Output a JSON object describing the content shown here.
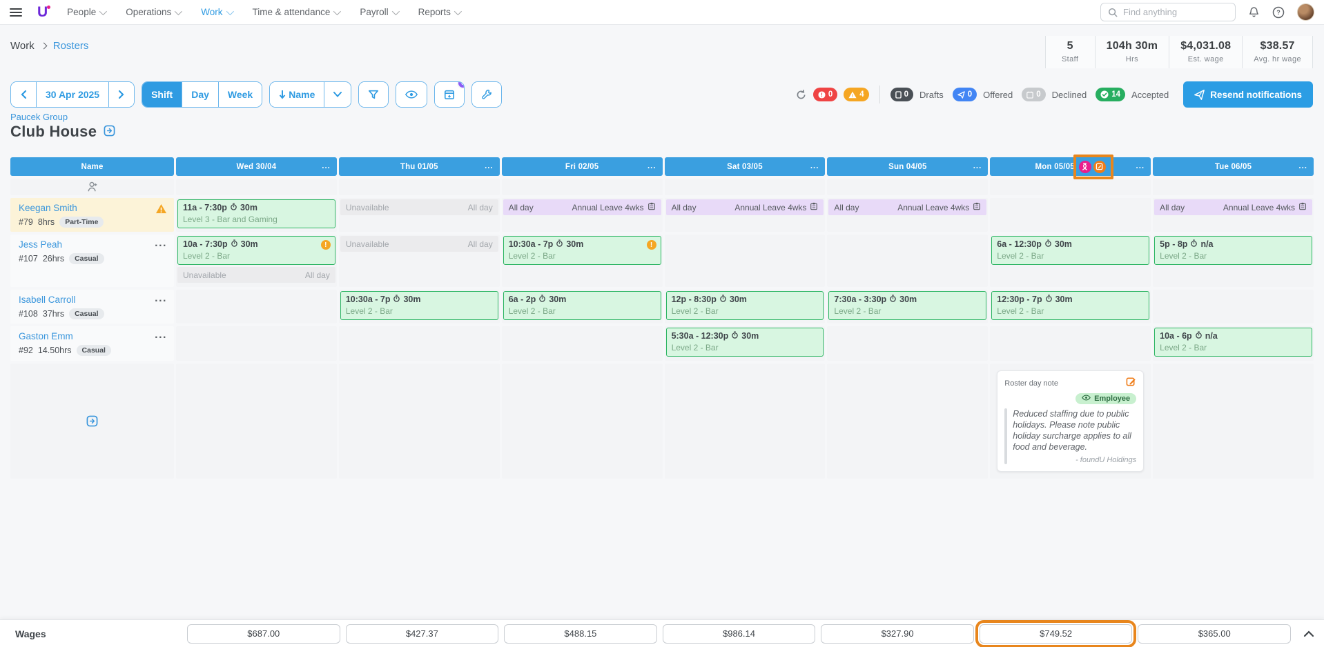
{
  "colors": {
    "accent": "#2f9be2",
    "header_blue": "#3a9fe0",
    "annotation_orange": "#e8861d",
    "shift_green_border": "#2db563",
    "shift_green_bg": "#d8f6e1",
    "leave_purple": "#e8daf8",
    "unavailable_gray": "#ebebed",
    "warning_orange": "#f5a623",
    "badge_purple": "#8b5cf6"
  },
  "nav": {
    "menus": [
      {
        "label": "People",
        "active": false
      },
      {
        "label": "Operations",
        "active": false
      },
      {
        "label": "Work",
        "active": true
      },
      {
        "label": "Time & attendance",
        "active": false
      },
      {
        "label": "Payroll",
        "active": false
      },
      {
        "label": "Reports",
        "active": false
      }
    ],
    "search_placeholder": "Find anything"
  },
  "breadcrumb": {
    "section": "Work",
    "current": "Rosters"
  },
  "stats": [
    {
      "value": "5",
      "label": "Staff"
    },
    {
      "value": "104h 30m",
      "label": "Hrs"
    },
    {
      "value": "$4,031.08",
      "label": "Est. wage"
    },
    {
      "value": "$38.57",
      "label": "Avg. hr wage"
    }
  ],
  "toolbar": {
    "date": "30 Apr 2025",
    "views": [
      "Shift",
      "Day",
      "Week"
    ],
    "active_view": "Shift",
    "sort_label": "Name",
    "schedule_badge": "3",
    "alert_error_count": "0",
    "alert_warning_count": "4",
    "statuses": [
      {
        "count": "0",
        "label": "Drafts",
        "color": "#4a5056",
        "icon": "page-icon"
      },
      {
        "count": "0",
        "label": "Offered",
        "color": "#4285f4",
        "icon": "paper-plane-icon"
      },
      {
        "count": "0",
        "label": "Declined",
        "color": "#c7cacd",
        "icon": "calendar-x-icon"
      },
      {
        "count": "14",
        "label": "Accepted",
        "color": "#27ae60",
        "icon": "check-circle-icon"
      }
    ],
    "resend_label": "Resend notifications"
  },
  "page": {
    "group": "Paucek Group",
    "title": "Club House"
  },
  "roster": {
    "columns": [
      "Name",
      "Wed 30/04",
      "Thu 01/05",
      "Fri 02/05",
      "Sat 03/05",
      "Sun 04/05",
      "Mon 05/05",
      "Tue 06/05"
    ],
    "highlight_day_index": 5,
    "cell_labels": {
      "unavailable_left": "Unavailable",
      "unavailable_right": "All day",
      "leave_left": "All day",
      "leave_right": "Annual Leave 4wks"
    },
    "employees": [
      {
        "name": "Keegan Smith",
        "id": "#79",
        "hours": "8hrs",
        "type": "Part-Time",
        "warning": true,
        "highlight": true,
        "min_height": 48,
        "cells": [
          [
            {
              "t": "shift",
              "time": "11a - 7:30p",
              "brk": "30m",
              "level": "Level 3 - Bar and Gaming",
              "warn": false
            }
          ],
          [
            {
              "t": "unavail"
            }
          ],
          [
            {
              "t": "leave"
            }
          ],
          [
            {
              "t": "leave"
            }
          ],
          [
            {
              "t": "leave"
            }
          ],
          [],
          [
            {
              "t": "leave"
            }
          ]
        ]
      },
      {
        "name": "Jess Peah",
        "id": "#107",
        "hours": "26hrs",
        "type": "Casual",
        "warning": false,
        "highlight": false,
        "min_height": 76,
        "cells": [
          [
            {
              "t": "shift",
              "time": "10a - 7:30p",
              "brk": "30m",
              "level": "Level 2 - Bar",
              "warn": true
            },
            {
              "t": "unavail"
            }
          ],
          [
            {
              "t": "unavail"
            }
          ],
          [
            {
              "t": "shift",
              "time": "10:30a - 7p",
              "brk": "30m",
              "level": "Level 2 - Bar",
              "warn": true
            }
          ],
          [],
          [],
          [
            {
              "t": "shift",
              "time": "6a - 12:30p",
              "brk": "30m",
              "level": "Level 2 - Bar",
              "warn": false
            }
          ],
          [
            {
              "t": "shift",
              "time": "5p - 8p",
              "brk": "n/a",
              "level": "Level 2 - Bar",
              "warn": false
            }
          ]
        ]
      },
      {
        "name": "Isabell Carroll",
        "id": "#108",
        "hours": "37hrs",
        "type": "Casual",
        "warning": false,
        "highlight": false,
        "min_height": 46,
        "cells": [
          [],
          [
            {
              "t": "shift",
              "time": "10:30a - 7p",
              "brk": "30m",
              "level": "Level 2 - Bar",
              "warn": false
            }
          ],
          [
            {
              "t": "shift",
              "time": "6a - 2p",
              "brk": "30m",
              "level": "Level 2 - Bar",
              "warn": false
            }
          ],
          [
            {
              "t": "shift",
              "time": "12p - 8:30p",
              "brk": "30m",
              "level": "Level 2 - Bar",
              "warn": false
            }
          ],
          [
            {
              "t": "shift",
              "time": "7:30a - 3:30p",
              "brk": "30m",
              "level": "Level 2 - Bar",
              "warn": false
            }
          ],
          [
            {
              "t": "shift",
              "time": "12:30p - 7p",
              "brk": "30m",
              "level": "Level 2 - Bar",
              "warn": false
            }
          ],
          []
        ]
      },
      {
        "name": "Gaston Emm",
        "id": "#92",
        "hours": "14.50hrs",
        "type": "Casual",
        "warning": false,
        "highlight": false,
        "min_height": 50,
        "cells": [
          [],
          [],
          [],
          [
            {
              "t": "shift",
              "time": "5:30a - 12:30p",
              "brk": "30m",
              "level": "Level 2 - Bar",
              "warn": false
            }
          ],
          [],
          [],
          [
            {
              "t": "shift",
              "time": "10a - 6p",
              "brk": "n/a",
              "level": "Level 2 - Bar",
              "warn": false
            }
          ]
        ]
      }
    ],
    "day_note": {
      "title": "Roster day note",
      "visibility": "Employee",
      "text": "Reduced staffing due to public holidays. Please note public holiday surcharge applies to all food and beverage.",
      "attribution": "- foundU Holdings",
      "day_index": 5
    },
    "wages": {
      "label": "Wages",
      "values": [
        "$687.00",
        "$427.37",
        "$488.15",
        "$986.14",
        "$327.90",
        "$749.52",
        "$365.00"
      ],
      "highlight_index": 5
    }
  }
}
